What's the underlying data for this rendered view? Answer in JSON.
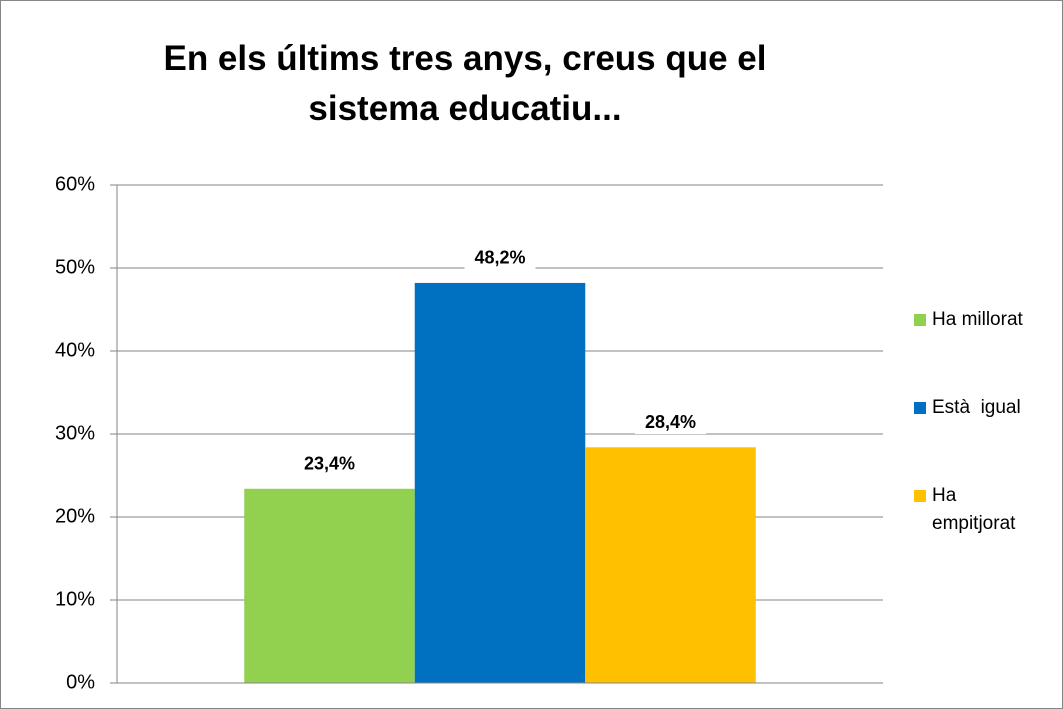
{
  "chart_data": {
    "type": "bar",
    "title": "En els últims tres anys, creus que el sistema educatiu...",
    "categories": [
      null
    ],
    "series": [
      {
        "name": "Ha millorat",
        "color": "#92d050",
        "values": [
          23.4
        ],
        "value_labels": [
          "23,4%"
        ]
      },
      {
        "name": "Està  igual",
        "color": "#0070c0",
        "values": [
          48.2
        ],
        "value_labels": [
          "48,2%"
        ]
      },
      {
        "name": "Ha empitjorat",
        "color": "#ffc000",
        "values": [
          28.4
        ],
        "value_labels": [
          "28,4%"
        ]
      }
    ],
    "ylim": [
      0,
      60
    ],
    "yticks": [
      {
        "value": 0,
        "label": "0%"
      },
      {
        "value": 10,
        "label": "10%"
      },
      {
        "value": 20,
        "label": "20%"
      },
      {
        "value": 30,
        "label": "30%"
      },
      {
        "value": 40,
        "label": "40%"
      },
      {
        "value": 50,
        "label": "50%"
      },
      {
        "value": 60,
        "label": "60%"
      }
    ],
    "grid": true,
    "legend": "right"
  }
}
